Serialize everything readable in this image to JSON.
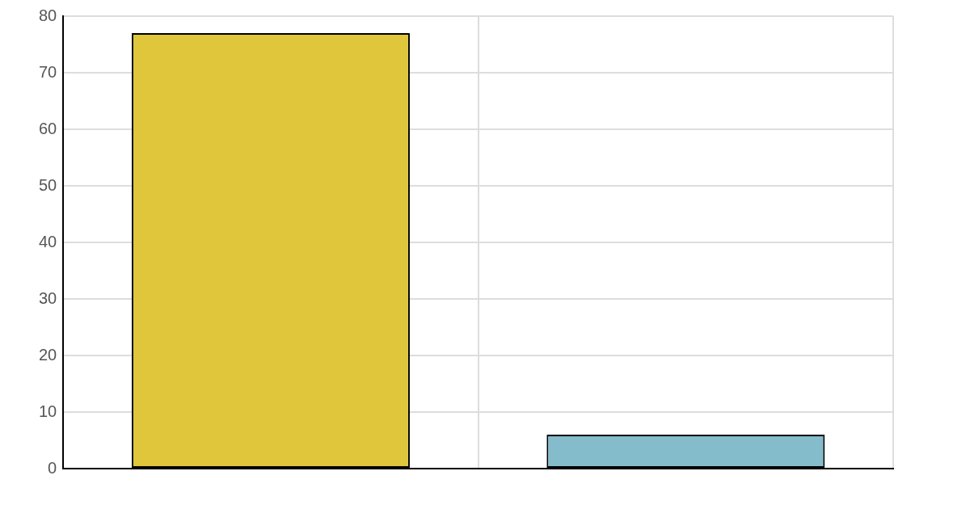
{
  "chart_data": {
    "type": "bar",
    "categories": [
      null,
      null
    ],
    "values": [
      77,
      6
    ],
    "colors": [
      "#dfc63a",
      "#84bccb"
    ],
    "ylim": [
      0,
      80
    ],
    "yticks": [
      0,
      10,
      20,
      30,
      40,
      50,
      60,
      70,
      80
    ],
    "grid": true
  }
}
